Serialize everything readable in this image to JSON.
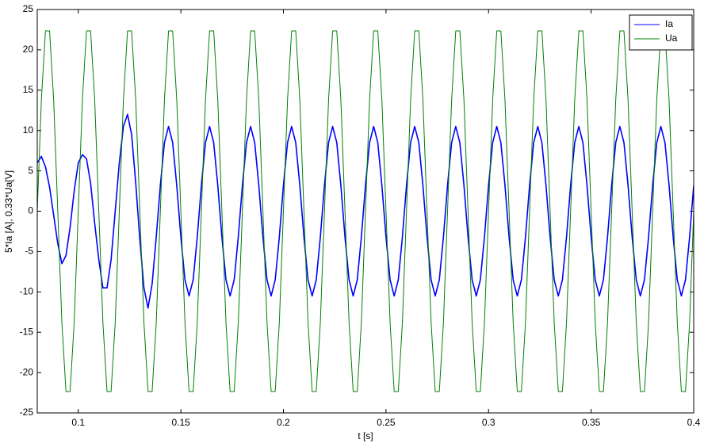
{
  "chart_data": {
    "type": "line",
    "xlabel": "t [s]",
    "ylabel": "5*Ia [A], 0.33*Ua[V]",
    "xlim": [
      0.08,
      0.4
    ],
    "ylim": [
      -25,
      25
    ],
    "xticks": [
      0.1,
      0.15,
      0.2,
      0.25,
      0.3,
      0.35,
      0.4
    ],
    "yticks": [
      -25,
      -20,
      -15,
      -10,
      -5,
      0,
      5,
      10,
      15,
      20,
      25
    ],
    "grid": false,
    "legend": "top-right",
    "x": [
      0.08,
      0.082,
      0.084,
      0.086,
      0.088,
      0.09,
      0.092,
      0.094,
      0.096,
      0.098,
      0.1,
      0.102,
      0.104,
      0.106,
      0.108,
      0.11,
      0.112,
      0.114,
      0.116,
      0.118,
      0.12,
      0.122,
      0.124,
      0.126,
      0.128,
      0.13,
      0.132,
      0.134,
      0.136,
      0.138,
      0.14,
      0.142,
      0.144,
      0.146,
      0.148,
      0.15,
      0.152,
      0.154,
      0.156,
      0.158,
      0.16,
      0.162,
      0.164,
      0.166,
      0.168,
      0.17,
      0.172,
      0.174,
      0.176,
      0.178,
      0.18,
      0.182,
      0.184,
      0.186,
      0.188,
      0.19,
      0.192,
      0.194,
      0.196,
      0.198,
      0.2,
      0.202,
      0.204,
      0.206,
      0.208,
      0.21,
      0.212,
      0.214,
      0.216,
      0.218,
      0.22,
      0.222,
      0.224,
      0.226,
      0.228,
      0.23,
      0.232,
      0.234,
      0.236,
      0.238,
      0.24,
      0.242,
      0.244,
      0.246,
      0.248,
      0.25,
      0.252,
      0.254,
      0.256,
      0.258,
      0.26,
      0.262,
      0.264,
      0.266,
      0.268,
      0.27,
      0.272,
      0.274,
      0.276,
      0.278,
      0.28,
      0.282,
      0.284,
      0.286,
      0.288,
      0.29,
      0.292,
      0.294,
      0.296,
      0.298,
      0.3,
      0.302,
      0.304,
      0.306,
      0.308,
      0.31,
      0.312,
      0.314,
      0.316,
      0.318,
      0.32,
      0.322,
      0.324,
      0.326,
      0.328,
      0.33,
      0.332,
      0.334,
      0.336,
      0.338,
      0.34,
      0.342,
      0.344,
      0.346,
      0.348,
      0.35,
      0.352,
      0.354,
      0.356,
      0.358,
      0.36,
      0.362,
      0.364,
      0.366,
      0.368,
      0.37,
      0.372,
      0.374,
      0.376,
      0.378,
      0.38,
      0.382,
      0.384,
      0.386,
      0.388,
      0.39,
      0.392,
      0.394,
      0.396,
      0.398,
      0.4
    ],
    "series": [
      {
        "name": "Ia",
        "color": "#0000ff",
        "width": 1.6,
        "values": [
          6.0,
          6.8,
          5.5,
          3,
          -0.5,
          -4,
          -6.5,
          -5.5,
          -2,
          2.5,
          6,
          7,
          6.5,
          3.5,
          -1.5,
          -6,
          -9.5,
          -9.5,
          -6,
          0,
          6,
          10.5,
          12,
          9.5,
          3.5,
          -3.5,
          -9.5,
          -12,
          -9,
          -3.2,
          3.2,
          8.5,
          10.5,
          8.5,
          3.2,
          -3.2,
          -8.5,
          -10.5,
          -8.5,
          -3.2,
          3.2,
          8.5,
          10.5,
          8.5,
          3.2,
          -3.2,
          -8.5,
          -10.5,
          -8.5,
          -3.2,
          3.2,
          8.5,
          10.5,
          8.5,
          3.2,
          -3.2,
          -8.5,
          -10.5,
          -8.5,
          -3.2,
          3.2,
          8.5,
          10.5,
          8.5,
          3.2,
          -3.2,
          -8.5,
          -10.5,
          -8.5,
          -3.2,
          3.2,
          8.5,
          10.5,
          8.5,
          3.2,
          -3.2,
          -8.5,
          -10.5,
          -8.5,
          -3.2,
          3.2,
          8.5,
          10.5,
          8.5,
          3.2,
          -3.2,
          -8.5,
          -10.5,
          -8.5,
          -3.2,
          3.2,
          8.5,
          10.5,
          8.5,
          3.2,
          -3.2,
          -8.5,
          -10.5,
          -8.5,
          -3.2,
          3.2,
          8.5,
          10.5,
          8.5,
          3.2,
          -3.2,
          -8.5,
          -10.5,
          -8.5,
          -3.2,
          3.2,
          8.5,
          10.5,
          8.5,
          3.2,
          -3.2,
          -8.5,
          -10.5,
          -8.5,
          -3.2,
          3.2,
          8.5,
          10.5,
          8.5,
          3.2,
          -3.2,
          -8.5,
          -10.5,
          -8.5,
          -3.2,
          3.2,
          8.5,
          10.5,
          8.5,
          3.2,
          -3.2,
          -8.5,
          -10.5,
          -8.5,
          -3.2,
          3.2,
          8.5,
          10.5,
          8.5,
          3.2,
          -3.2,
          -8.5,
          -10.5,
          -8.5,
          -3.2,
          3.2,
          8.5,
          10.5,
          8.5,
          3.2,
          -3.2,
          -8.5,
          -10.5,
          -8.5,
          -3.2,
          3.2
        ]
      },
      {
        "name": "Ua",
        "color": "#008000",
        "width": 1,
        "values": [
          0,
          13.8,
          22.35,
          22.35,
          13.8,
          0,
          -13.8,
          -22.35,
          -22.35,
          -13.8,
          0,
          13.8,
          22.35,
          22.35,
          13.8,
          0,
          -13.8,
          -22.35,
          -22.35,
          -13.8,
          0,
          13.8,
          22.35,
          22.35,
          13.8,
          0,
          -13.8,
          -22.35,
          -22.35,
          -13.8,
          0,
          13.8,
          22.35,
          22.35,
          13.8,
          0,
          -13.8,
          -22.35,
          -22.35,
          -13.8,
          0,
          13.8,
          22.35,
          22.35,
          13.8,
          0,
          -13.8,
          -22.35,
          -22.35,
          -13.8,
          0,
          13.8,
          22.35,
          22.35,
          13.8,
          0,
          -13.8,
          -22.35,
          -22.35,
          -13.8,
          0,
          13.8,
          22.35,
          22.35,
          13.8,
          0,
          -13.8,
          -22.35,
          -22.35,
          -13.8,
          0,
          13.8,
          22.35,
          22.35,
          13.8,
          0,
          -13.8,
          -22.35,
          -22.35,
          -13.8,
          0,
          13.8,
          22.35,
          22.35,
          13.8,
          0,
          -13.8,
          -22.35,
          -22.35,
          -13.8,
          0,
          13.8,
          22.35,
          22.35,
          13.8,
          0,
          -13.8,
          -22.35,
          -22.35,
          -13.8,
          0,
          13.8,
          22.35,
          22.35,
          13.8,
          0,
          -13.8,
          -22.35,
          -22.35,
          -13.8,
          0,
          13.8,
          22.35,
          22.35,
          13.8,
          0,
          -13.8,
          -22.35,
          -22.35,
          -13.8,
          0,
          13.8,
          22.35,
          22.35,
          13.8,
          0,
          -13.8,
          -22.35,
          -22.35,
          -13.8,
          0,
          13.8,
          22.35,
          22.35,
          13.8,
          0,
          -13.8,
          -22.35,
          -22.35,
          -13.8,
          0,
          13.8,
          22.35,
          22.35,
          13.8,
          0,
          -13.8,
          -22.35,
          -22.35,
          -13.8,
          0,
          13.8,
          22.35,
          22.35,
          13.8,
          0,
          -13.8,
          -22.35,
          -22.35,
          -13.8,
          0
        ]
      }
    ]
  }
}
